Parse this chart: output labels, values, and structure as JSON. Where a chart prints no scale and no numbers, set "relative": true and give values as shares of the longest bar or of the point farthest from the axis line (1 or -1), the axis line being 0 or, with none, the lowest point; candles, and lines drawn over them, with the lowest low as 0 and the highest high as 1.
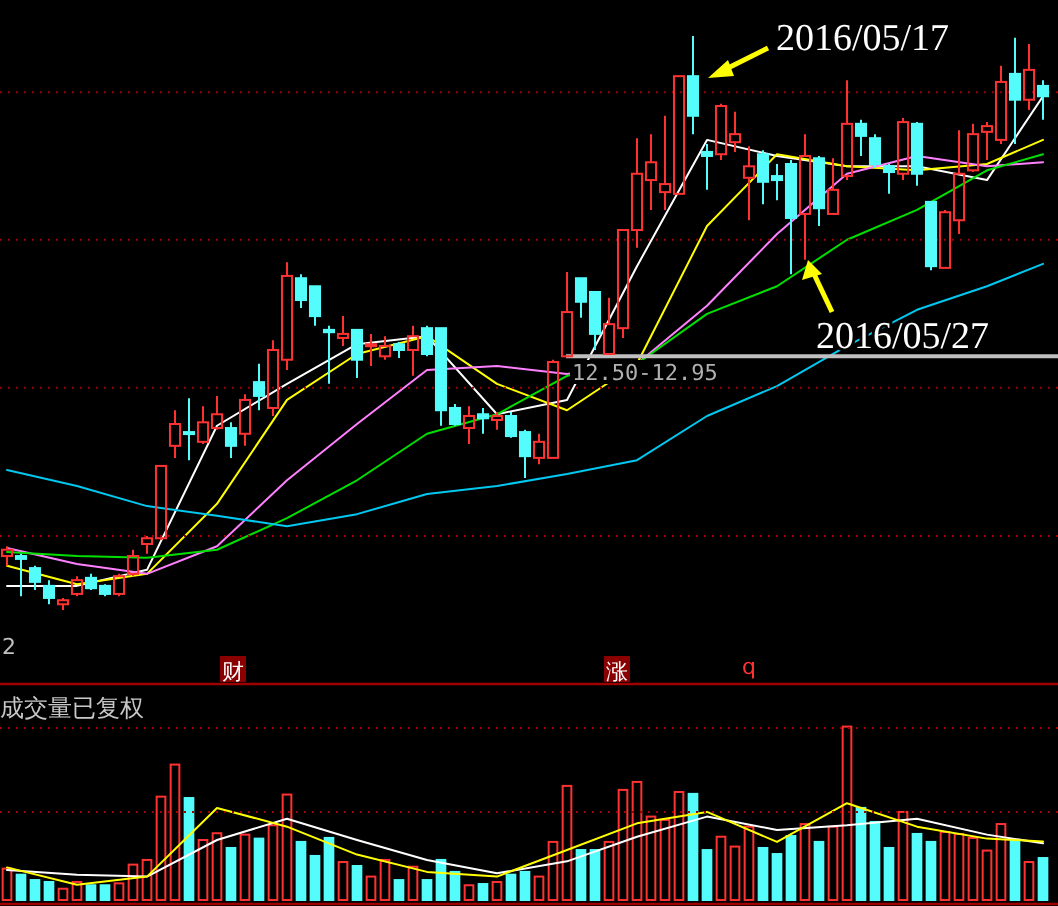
{
  "chart_data": [
    {
      "type": "candlestick",
      "relative": true,
      "categories": [
        null,
        null,
        null,
        null,
        null,
        null,
        null,
        null,
        null,
        null,
        null,
        null,
        null,
        null,
        null,
        null,
        null,
        null,
        null,
        null,
        null,
        null,
        null,
        null,
        null,
        null,
        null,
        null,
        null,
        null,
        null,
        null,
        null,
        null,
        null,
        null,
        null,
        null,
        null,
        null,
        null,
        null,
        null,
        null,
        null,
        null,
        null,
        null,
        null,
        null,
        null,
        null,
        null,
        null,
        null,
        null,
        null,
        null,
        null,
        null,
        null,
        null,
        null,
        null,
        null,
        null,
        null,
        null,
        null,
        null,
        null,
        null,
        null,
        null,
        null
      ],
      "ohlc": [
        [
          0.094,
          0.111,
          0.077,
          0.105
        ],
        [
          0.094,
          0.098,
          0.024,
          0.089
        ],
        [
          0.073,
          0.077,
          0.035,
          0.049
        ],
        [
          0.042,
          0.052,
          0.01,
          0.021
        ],
        [
          0.01,
          0.021,
          0,
          0.017
        ],
        [
          0.028,
          0.059,
          0.024,
          0.052
        ],
        [
          0.056,
          0.063,
          0.035,
          0.038
        ],
        [
          0.042,
          0.045,
          0.024,
          0.028
        ],
        [
          0.028,
          0.063,
          0.024,
          0.059
        ],
        [
          0.063,
          0.105,
          0.059,
          0.094
        ],
        [
          0.115,
          0.129,
          0.098,
          0.125
        ],
        [
          0.125,
          0.251,
          0.122,
          0.251
        ],
        [
          0.286,
          0.348,
          0.265,
          0.324
        ],
        [
          0.31,
          0.369,
          0.261,
          0.307
        ],
        [
          0.293,
          0.355,
          0.289,
          0.327
        ],
        [
          0.317,
          0.373,
          0.314,
          0.341
        ],
        [
          0.317,
          0.327,
          0.265,
          0.286
        ],
        [
          0.307,
          0.376,
          0.286,
          0.366
        ],
        [
          0.397,
          0.429,
          0.348,
          0.373
        ],
        [
          0.352,
          0.47,
          0.338,
          0.453
        ],
        [
          0.436,
          0.606,
          0.418,
          0.582
        ],
        [
          0.578,
          0.585,
          0.526,
          0.54
        ],
        [
          0.564,
          0.564,
          0.495,
          0.512
        ],
        [
          0.488,
          0.495,
          0.394,
          0.484
        ],
        [
          0.474,
          0.512,
          0.46,
          0.481
        ],
        [
          0.488,
          0.488,
          0.404,
          0.436
        ],
        [
          0.46,
          0.481,
          0.425,
          0.463
        ],
        [
          0.442,
          0.477,
          0.436,
          0.46
        ],
        [
          0.463,
          0.467,
          0.439,
          0.453
        ],
        [
          0.453,
          0.495,
          0.408,
          0.477
        ],
        [
          0.491,
          0.495,
          0.442,
          0.446
        ],
        [
          0.491,
          0.491,
          0.321,
          0.348
        ],
        [
          0.352,
          0.359,
          0.321,
          0.324
        ],
        [
          0.317,
          0.355,
          0.289,
          0.338
        ],
        [
          0.341,
          0.352,
          0.307,
          0.334
        ],
        [
          0.331,
          0.345,
          0.314,
          0.338
        ],
        [
          0.338,
          0.345,
          0.3,
          0.303
        ],
        [
          0.31,
          0.314,
          0.23,
          0.268
        ],
        [
          0.265,
          0.307,
          0.254,
          0.293
        ],
        [
          0.265,
          0.436,
          0.265,
          0.432
        ],
        [
          0.442,
          0.589,
          0.442,
          0.519
        ],
        [
          0.578,
          0.578,
          0.509,
          0.537
        ],
        [
          0.554,
          0.554,
          0.453,
          0.481
        ],
        [
          0.446,
          0.544,
          0.446,
          0.498
        ],
        [
          0.491,
          0.662,
          0.474,
          0.662
        ],
        [
          0.662,
          0.822,
          0.631,
          0.76
        ],
        [
          0.749,
          0.829,
          0.697,
          0.78
        ],
        [
          0.728,
          0.861,
          0.697,
          0.742
        ],
        [
          0.725,
          0.93,
          0.725,
          0.93
        ],
        [
          0.93,
          1,
          0.829,
          0.861
        ],
        [
          0.798,
          0.812,
          0.732,
          0.791
        ],
        [
          0.794,
          0.882,
          0.784,
          0.878
        ],
        [
          0.815,
          0.868,
          0.798,
          0.829
        ],
        [
          0.753,
          0.808,
          0.679,
          0.773
        ],
        [
          0.794,
          0.801,
          0.707,
          0.746
        ],
        [
          0.756,
          0.777,
          0.714,
          0.749
        ],
        [
          0.777,
          0.784,
          0.585,
          0.683
        ],
        [
          0.69,
          0.829,
          0.61,
          0.791
        ],
        [
          0.787,
          0.791,
          0.669,
          0.7
        ],
        [
          0.69,
          0.787,
          0.69,
          0.732
        ],
        [
          0.756,
          0.923,
          0.749,
          0.847
        ],
        [
          0.847,
          0.854,
          0.791,
          0.826
        ],
        [
          0.822,
          0.829,
          0.77,
          0.777
        ],
        [
          0.773,
          0.777,
          0.725,
          0.763
        ],
        [
          0.76,
          0.857,
          0.749,
          0.85
        ],
        [
          0.847,
          0.85,
          0.739,
          0.76
        ],
        [
          0.711,
          0.711,
          0.592,
          0.599
        ],
        [
          0.596,
          0.697,
          0.596,
          0.693
        ],
        [
          0.679,
          0.836,
          0.655,
          0.76
        ],
        [
          0.766,
          0.847,
          0.763,
          0.829
        ],
        [
          0.833,
          0.85,
          0.784,
          0.843
        ],
        [
          0.819,
          0.948,
          0.812,
          0.92
        ],
        [
          0.934,
          0.997,
          0.812,
          0.889
        ],
        [
          0.889,
          0.986,
          0.871,
          0.941
        ],
        [
          0.913,
          0.923,
          0.854,
          0.895
        ]
      ],
      "series": [
        {
          "type": "line",
          "color": "#ffffff",
          "values": [
            0.042,
            null,
            null,
            null,
            null,
            0.042,
            null,
            null,
            null,
            null,
            0.07,
            null,
            null,
            null,
            null,
            0.321,
            null,
            null,
            null,
            null,
            0.394,
            null,
            null,
            null,
            null,
            0.463,
            null,
            null,
            null,
            null,
            0.477,
            null,
            null,
            null,
            null,
            0.341,
            null,
            null,
            null,
            null,
            0.366,
            null,
            null,
            null,
            null,
            0.599,
            null,
            null,
            null,
            null,
            0.819,
            null,
            null,
            null,
            null,
            0.791,
            null,
            null,
            null,
            null,
            0.773,
            null,
            null,
            null,
            null,
            0.773,
            null,
            null,
            null,
            null,
            0.749,
            null,
            null,
            null,
            0.895
          ]
        },
        {
          "type": "line",
          "color": "#ffff00",
          "values": [
            0.077,
            null,
            null,
            null,
            null,
            0.045,
            null,
            null,
            null,
            null,
            0.063,
            null,
            null,
            null,
            null,
            0.185,
            null,
            null,
            null,
            null,
            0.366,
            null,
            null,
            null,
            null,
            0.446,
            null,
            null,
            null,
            null,
            0.477,
            null,
            null,
            null,
            null,
            0.394,
            null,
            null,
            null,
            null,
            0.348,
            null,
            null,
            null,
            null,
            0.429,
            null,
            null,
            null,
            null,
            0.669,
            null,
            null,
            null,
            null,
            0.794,
            null,
            null,
            null,
            null,
            0.773,
            null,
            null,
            null,
            null,
            0.766,
            null,
            null,
            null,
            null,
            0.777,
            null,
            null,
            null,
            0.819
          ]
        },
        {
          "type": "line",
          "color": "#ff80ff",
          "values": [
            0.108,
            null,
            null,
            null,
            null,
            0.08,
            null,
            null,
            null,
            null,
            0.063,
            null,
            null,
            null,
            null,
            0.111,
            null,
            null,
            null,
            null,
            0.226,
            null,
            null,
            null,
            null,
            0.324,
            null,
            null,
            null,
            null,
            0.418,
            null,
            null,
            null,
            null,
            0.425,
            null,
            null,
            null,
            null,
            0.411,
            null,
            null,
            null,
            null,
            0.429,
            null,
            null,
            null,
            null,
            0.53,
            null,
            null,
            null,
            null,
            0.655,
            null,
            null,
            null,
            null,
            0.76,
            null,
            null,
            null,
            null,
            0.791,
            null,
            null,
            null,
            null,
            0.773,
            null,
            null,
            null,
            0.78
          ]
        },
        {
          "type": "line",
          "color": "#00e000",
          "values": [
            0.101,
            null,
            null,
            null,
            null,
            0.094,
            null,
            null,
            null,
            null,
            0.091,
            null,
            null,
            null,
            null,
            0.105,
            null,
            null,
            null,
            null,
            0.16,
            null,
            null,
            null,
            null,
            0.226,
            null,
            null,
            null,
            null,
            0.307,
            null,
            null,
            null,
            null,
            0.341,
            null,
            null,
            null,
            null,
            0.408,
            null,
            null,
            null,
            null,
            0.429,
            null,
            null,
            null,
            null,
            0.516,
            null,
            null,
            null,
            null,
            0.564,
            null,
            null,
            null,
            null,
            0.645,
            null,
            null,
            null,
            null,
            0.697,
            null,
            null,
            null,
            null,
            0.766,
            null,
            null,
            null,
            0.794
          ]
        },
        {
          "type": "line",
          "color": "#00c8f0",
          "values": [
            0.244,
            null,
            null,
            null,
            null,
            0.216,
            null,
            null,
            null,
            null,
            0.181,
            null,
            null,
            null,
            null,
            0.164,
            null,
            null,
            null,
            null,
            0.146,
            null,
            null,
            null,
            null,
            0.167,
            null,
            null,
            null,
            null,
            0.202,
            null,
            null,
            null,
            null,
            0.216,
            null,
            null,
            null,
            null,
            0.237,
            null,
            null,
            null,
            null,
            0.261,
            null,
            null,
            null,
            null,
            0.338,
            null,
            null,
            null,
            null,
            0.39,
            null,
            null,
            null,
            null,
            0.46,
            null,
            null,
            null,
            null,
            0.523,
            null,
            null,
            null,
            null,
            0.564,
            null,
            null,
            null,
            0.603
          ]
        }
      ],
      "ref_lines": [
        {
          "axis": "y",
          "value": 0.442,
          "color": "#c0c0c0"
        },
        {
          "axis": "y",
          "value": 0.902,
          "color": "#a00000",
          "line_style": "dotted"
        },
        {
          "axis": "y",
          "value": 0.645,
          "color": "#a00000",
          "line_style": "dotted"
        },
        {
          "axis": "y",
          "value": 0.387,
          "color": "#a00000",
          "line_style": "dotted"
        },
        {
          "axis": "y",
          "value": 0.129,
          "color": "#a00000",
          "line_style": "dotted"
        }
      ],
      "annotations": [
        "2016/05/17",
        "2016/05/27",
        "2",
        "财",
        "涨",
        "q",
        "12.50-12.95"
      ]
    },
    {
      "type": "bar",
      "relative": true,
      "categories": [
        null,
        null,
        null,
        null,
        null,
        null,
        null,
        null,
        null,
        null,
        null,
        null,
        null,
        null,
        null,
        null,
        null,
        null,
        null,
        null,
        null,
        null,
        null,
        null,
        null,
        null,
        null,
        null,
        null,
        null,
        null,
        null,
        null,
        null,
        null,
        null,
        null,
        null,
        null,
        null,
        null,
        null,
        null,
        null,
        null,
        null,
        null,
        null,
        null,
        null,
        null,
        null,
        null,
        null,
        null,
        null,
        null,
        null,
        null,
        null,
        null,
        null,
        null,
        null,
        null,
        null,
        null,
        null,
        null,
        null,
        null,
        null,
        null,
        null,
        null
      ],
      "values": [
        0.181,
        0.146,
        0.115,
        0.104,
        0.065,
        0.104,
        0.085,
        0.085,
        0.096,
        0.204,
        0.231,
        0.596,
        0.781,
        0.588,
        0.346,
        0.385,
        0.3,
        0.377,
        0.354,
        0.431,
        0.608,
        0.335,
        0.254,
        0.358,
        0.219,
        0.196,
        0.135,
        0.231,
        0.115,
        0.192,
        0.115,
        0.231,
        0.162,
        0.085,
        0.092,
        0.104,
        0.146,
        0.162,
        0.135,
        0.335,
        0.658,
        0.288,
        0.288,
        0.335,
        0.635,
        0.681,
        0.481,
        0.462,
        0.623,
        0.612,
        0.288,
        0.365,
        0.308,
        0.423,
        0.3,
        0.265,
        0.369,
        0.438,
        0.335,
        0.423,
        1,
        0.531,
        0.45,
        0.3,
        0.508,
        0.381,
        0.335,
        0.392,
        0.381,
        0.358,
        0.285,
        0.438,
        0.346,
        0.219,
        0.242
      ],
      "colors": [
        "#ff3232",
        "#54fcfc",
        "#54fcfc",
        "#54fcfc",
        "#ff3232",
        "#ff3232",
        "#54fcfc",
        "#54fcfc",
        "#ff3232",
        "#ff3232",
        "#ff3232",
        "#ff3232",
        "#ff3232",
        "#54fcfc",
        "#ff3232",
        "#ff3232",
        "#54fcfc",
        "#ff3232",
        "#54fcfc",
        "#ff3232",
        "#ff3232",
        "#54fcfc",
        "#54fcfc",
        "#54fcfc",
        "#ff3232",
        "#54fcfc",
        "#ff3232",
        "#ff3232",
        "#54fcfc",
        "#ff3232",
        "#54fcfc",
        "#54fcfc",
        "#54fcfc",
        "#ff3232",
        "#54fcfc",
        "#ff3232",
        "#54fcfc",
        "#54fcfc",
        "#ff3232",
        "#ff3232",
        "#ff3232",
        "#54fcfc",
        "#54fcfc",
        "#ff3232",
        "#ff3232",
        "#ff3232",
        "#ff3232",
        "#ff3232",
        "#ff3232",
        "#54fcfc",
        "#54fcfc",
        "#ff3232",
        "#ff3232",
        "#ff3232",
        "#54fcfc",
        "#54fcfc",
        "#54fcfc",
        "#ff3232",
        "#54fcfc",
        "#ff3232",
        "#ff3232",
        "#54fcfc",
        "#54fcfc",
        "#54fcfc",
        "#ff3232",
        "#54fcfc",
        "#54fcfc",
        "#ff3232",
        "#ff3232",
        "#ff3232",
        "#ff3232",
        "#ff3232",
        "#54fcfc",
        "#ff3232",
        "#54fcfc"
      ],
      "series": [
        {
          "type": "line",
          "color": "#ffffff",
          "values": [
            0.173,
            null,
            null,
            null,
            null,
            0.146,
            null,
            null,
            null,
            null,
            0.135,
            null,
            null,
            null,
            null,
            0.346,
            null,
            null,
            null,
            null,
            0.469,
            null,
            null,
            null,
            null,
            0.346,
            null,
            null,
            null,
            null,
            0.231,
            null,
            null,
            null,
            null,
            0.154,
            null,
            null,
            null,
            null,
            0.223,
            null,
            null,
            null,
            null,
            0.365,
            null,
            null,
            null,
            null,
            0.481,
            null,
            null,
            null,
            null,
            0.404,
            null,
            null,
            null,
            null,
            0.431,
            null,
            null,
            null,
            null,
            0.469,
            null,
            null,
            null,
            null,
            0.377,
            null,
            null,
            null,
            0.327
          ]
        },
        {
          "type": "line",
          "color": "#ffff00",
          "values": [
            0.188,
            null,
            null,
            null,
            null,
            0.088,
            null,
            null,
            null,
            null,
            0.135,
            null,
            null,
            null,
            null,
            0.531,
            null,
            null,
            null,
            null,
            0.423,
            null,
            null,
            null,
            null,
            0.262,
            null,
            null,
            null,
            null,
            0.162,
            null,
            null,
            null,
            null,
            0.135,
            null,
            null,
            null,
            null,
            0.288,
            null,
            null,
            null,
            null,
            0.442,
            null,
            null,
            null,
            null,
            0.508,
            null,
            null,
            null,
            null,
            0.335,
            null,
            null,
            null,
            null,
            0.558,
            null,
            null,
            null,
            null,
            0.423,
            null,
            null,
            null,
            null,
            0.354,
            null,
            null,
            null,
            0.338
          ]
        }
      ],
      "ref_lines": [
        {
          "axis": "y",
          "value": 0.992,
          "color": "#a00000",
          "line_style": "dotted"
        },
        {
          "axis": "y",
          "value": 0.507,
          "color": "#a00000",
          "line_style": "dotted"
        }
      ],
      "annotations": [
        "成交量已复权"
      ]
    }
  ]
}
